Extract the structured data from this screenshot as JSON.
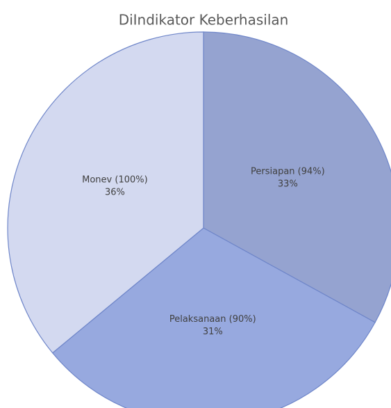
{
  "chart_data": {
    "type": "pie",
    "title": "DiIndikator Keberhasilan",
    "categories": [
      "Persiapan (94%)",
      "Pelaksanaan (90%)",
      "Monev (100%)"
    ],
    "values": [
      33,
      31,
      36
    ],
    "value_labels": [
      "33%",
      "31%",
      "36%"
    ],
    "colors": [
      "#95a3d0",
      "#97a9df",
      "#d3d9f0"
    ]
  }
}
